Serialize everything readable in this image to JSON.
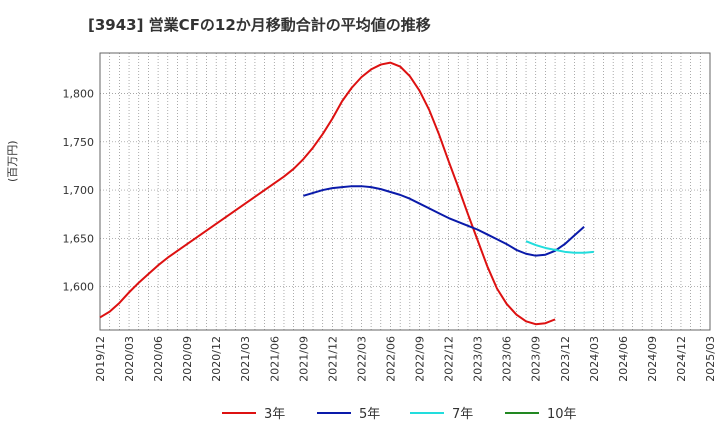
{
  "chart_data": {
    "type": "line",
    "title": "[3943]  営業CFの12か月移動合計の平均値の推移",
    "ylabel": "(百万円)",
    "xlabel": "",
    "x_ticks": [
      "2019/12",
      "2020/03",
      "2020/06",
      "2020/09",
      "2020/12",
      "2021/03",
      "2021/06",
      "2021/09",
      "2021/12",
      "2022/03",
      "2022/06",
      "2022/09",
      "2022/12",
      "2023/03",
      "2023/06",
      "2023/09",
      "2023/12",
      "2024/03",
      "2024/06",
      "2024/09",
      "2024/12",
      "2025/03"
    ],
    "y_ticks": [
      1600,
      1650,
      1700,
      1750,
      1800
    ],
    "ylim": [
      1555,
      1842
    ],
    "grid": true,
    "legend_position": "bottom",
    "series": [
      {
        "name": "3年",
        "color": "#dd1111",
        "x_start": "2019/12",
        "values": [
          1568,
          1574,
          1583,
          1594,
          1604,
          1613,
          1622,
          1630,
          1637,
          1644,
          1651,
          1658,
          1665,
          1672,
          1679,
          1686,
          1693,
          1700,
          1707,
          1714,
          1722,
          1732,
          1744,
          1758,
          1774,
          1792,
          1806,
          1817,
          1825,
          1830,
          1832,
          1828,
          1818,
          1803,
          1783,
          1758,
          1730,
          1703,
          1675,
          1648,
          1621,
          1598,
          1582,
          1571,
          1564,
          1561,
          1562,
          1566
        ]
      },
      {
        "name": "5年",
        "color": "#0a1aaa",
        "x_start": "2021/09",
        "values": [
          1694,
          1697,
          1700,
          1702,
          1703,
          1704,
          1704,
          1703,
          1701,
          1698,
          1695,
          1691,
          1686,
          1681,
          1676,
          1671,
          1667,
          1663,
          1659,
          1654,
          1649,
          1644,
          1638,
          1634,
          1632,
          1633,
          1637,
          1644,
          1653,
          1662
        ]
      },
      {
        "name": "7年",
        "color": "#22dddd",
        "x_start": "2023/08",
        "values": [
          1647,
          1643,
          1640,
          1638,
          1636,
          1635,
          1635,
          1636
        ]
      },
      {
        "name": "10年",
        "color": "#228822",
        "x_start": "",
        "values": []
      }
    ]
  }
}
